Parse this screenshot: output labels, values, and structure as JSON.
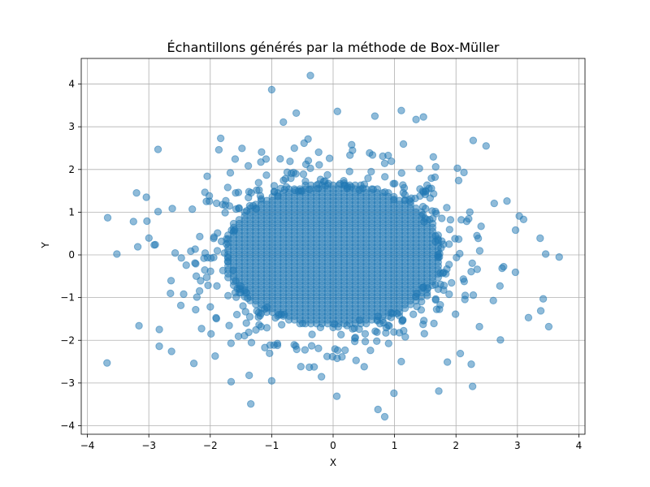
{
  "chart_data": {
    "type": "scatter",
    "title": "Échantillons générés par la méthode de Box-Müller",
    "xlabel": "X",
    "ylabel": "Y",
    "xlim": [
      -4.1,
      4.1
    ],
    "ylim": [
      -4.2,
      4.6
    ],
    "xticks": [
      -4,
      -3,
      -2,
      -1,
      0,
      1,
      2,
      3,
      4
    ],
    "yticks": [
      -4,
      -3,
      -2,
      -1,
      0,
      1,
      2,
      3,
      4
    ],
    "grid": true,
    "color": "#1f77b4",
    "alpha": 0.5,
    "series": [
      {
        "points": [
          [
            -3.67,
            0.87
          ],
          [
            -3.52,
            0.02
          ],
          [
            -3.25,
            0.78
          ],
          [
            -3.2,
            1.45
          ],
          [
            -3.18,
            0.19
          ],
          [
            -3.16,
            -1.66
          ],
          [
            -3.68,
            -2.53
          ],
          [
            -2.85,
            2.47
          ],
          [
            -3.04,
            1.35
          ],
          [
            -3.03,
            0.79
          ],
          [
            -1.34,
            -3.49
          ],
          [
            -1.66,
            -2.97
          ],
          [
            -0.37,
            4.2
          ],
          [
            -1.0,
            3.87
          ],
          [
            0.07,
            3.36
          ],
          [
            1.11,
            3.38
          ],
          [
            1.35,
            3.17
          ],
          [
            1.47,
            3.23
          ],
          [
            0.68,
            3.25
          ],
          [
            0.73,
            -3.62
          ],
          [
            0.84,
            -3.79
          ],
          [
            0.99,
            -3.24
          ],
          [
            1.72,
            -3.19
          ],
          [
            2.27,
            -3.08
          ],
          [
            -1.0,
            -2.95
          ],
          [
            3.46,
            0.02
          ],
          [
            3.68,
            -0.05
          ],
          [
            3.51,
            -1.68
          ],
          [
            3.18,
            -1.47
          ],
          [
            3.37,
            0.39
          ],
          [
            3.38,
            -1.31
          ],
          [
            3.42,
            -1.03
          ],
          [
            3.1,
            0.83
          ],
          [
            3.03,
            0.91
          ],
          [
            2.97,
            0.58
          ],
          [
            2.83,
            1.26
          ],
          [
            2.49,
            2.55
          ],
          [
            2.28,
            2.68
          ],
          [
            -2.63,
            -2.26
          ],
          [
            -2.83,
            -2.14
          ],
          [
            0.06,
            -3.31
          ],
          [
            -0.6,
            3.32
          ],
          [
            -0.81,
            3.11
          ],
          [
            2.13,
            1.93
          ],
          [
            -2.05,
            1.84
          ],
          [
            1.86,
            -2.51
          ],
          [
            -1.86,
            2.46
          ],
          [
            -1.83,
            2.73
          ],
          [
            -1.92,
            -2.37
          ],
          [
            2.07,
            -2.31
          ]
        ]
      }
    ],
    "core": {
      "x_range": [
        -1.8,
        1.8
      ],
      "y_range": [
        -1.7,
        1.7
      ],
      "step": 0.09
    }
  }
}
